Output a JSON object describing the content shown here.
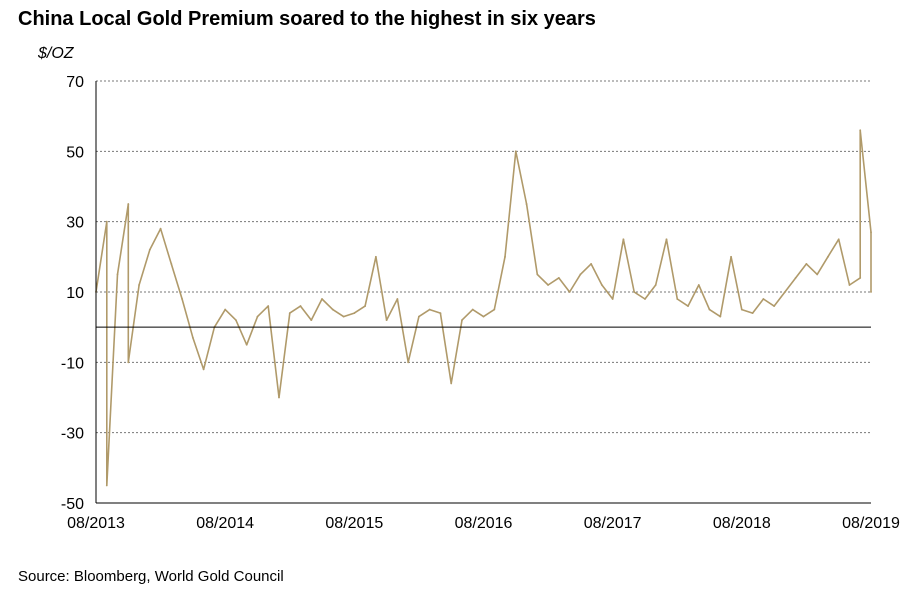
{
  "chart_data": {
    "type": "line",
    "title": "China Local Gold Premium soared to the highest in six years",
    "ylabel": "$/OZ",
    "source": "Source: Bloomberg, World Gold Council",
    "ylim": [
      -50,
      70
    ],
    "y_ticks": [
      70,
      50,
      30,
      10,
      -10,
      -30,
      -50
    ],
    "x_tick_labels": [
      "08/2013",
      "08/2014",
      "08/2015",
      "08/2016",
      "08/2017",
      "08/2018",
      "08/2019"
    ],
    "xlim": [
      "2013-08",
      "2019-08"
    ],
    "zero_line": 0,
    "grid": "horizontal dotted",
    "line_color": "#B09A6A",
    "series": [
      {
        "values": [
          [
            "2013-08",
            10
          ],
          [
            "2013-09",
            30
          ],
          [
            "2013-09",
            -45
          ],
          [
            "2013-10",
            15
          ],
          [
            "2013-11",
            35
          ],
          [
            "2013-11",
            -10
          ],
          [
            "2013-12",
            12
          ],
          [
            "2014-01",
            22
          ],
          [
            "2014-02",
            28
          ],
          [
            "2014-03",
            18
          ],
          [
            "2014-04",
            8
          ],
          [
            "2014-05",
            -3
          ],
          [
            "2014-06",
            -12
          ],
          [
            "2014-07",
            0
          ],
          [
            "2014-08",
            5
          ],
          [
            "2014-09",
            2
          ],
          [
            "2014-10",
            -5
          ],
          [
            "2014-11",
            3
          ],
          [
            "2014-12",
            6
          ],
          [
            "2015-01",
            -20
          ],
          [
            "2015-02",
            4
          ],
          [
            "2015-03",
            6
          ],
          [
            "2015-04",
            2
          ],
          [
            "2015-05",
            8
          ],
          [
            "2015-06",
            5
          ],
          [
            "2015-07",
            3
          ],
          [
            "2015-08",
            4
          ],
          [
            "2015-09",
            6
          ],
          [
            "2015-10",
            20
          ],
          [
            "2015-11",
            2
          ],
          [
            "2015-12",
            8
          ],
          [
            "2016-01",
            -10
          ],
          [
            "2016-02",
            3
          ],
          [
            "2016-03",
            5
          ],
          [
            "2016-04",
            4
          ],
          [
            "2016-05",
            -16
          ],
          [
            "2016-06",
            2
          ],
          [
            "2016-07",
            5
          ],
          [
            "2016-08",
            3
          ],
          [
            "2016-09",
            5
          ],
          [
            "2016-10",
            20
          ],
          [
            "2016-11",
            50
          ],
          [
            "2016-12",
            35
          ],
          [
            "2017-01",
            15
          ],
          [
            "2017-02",
            12
          ],
          [
            "2017-03",
            14
          ],
          [
            "2017-04",
            10
          ],
          [
            "2017-05",
            15
          ],
          [
            "2017-06",
            18
          ],
          [
            "2017-07",
            12
          ],
          [
            "2017-08",
            8
          ],
          [
            "2017-09",
            25
          ],
          [
            "2017-10",
            10
          ],
          [
            "2017-11",
            8
          ],
          [
            "2017-12",
            12
          ],
          [
            "2018-01",
            25
          ],
          [
            "2018-02",
            8
          ],
          [
            "2018-03",
            6
          ],
          [
            "2018-04",
            12
          ],
          [
            "2018-05",
            5
          ],
          [
            "2018-06",
            3
          ],
          [
            "2018-07",
            20
          ],
          [
            "2018-08",
            5
          ],
          [
            "2018-09",
            4
          ],
          [
            "2018-10",
            8
          ],
          [
            "2018-11",
            6
          ],
          [
            "2018-12",
            10
          ],
          [
            "2019-01",
            14
          ],
          [
            "2019-02",
            18
          ],
          [
            "2019-03",
            15
          ],
          [
            "2019-04",
            20
          ],
          [
            "2019-05",
            25
          ],
          [
            "2019-06",
            12
          ],
          [
            "2019-07",
            14
          ],
          [
            "2019-07",
            56
          ],
          [
            "2019-08",
            27
          ],
          [
            "2019-08",
            10
          ]
        ]
      }
    ]
  }
}
